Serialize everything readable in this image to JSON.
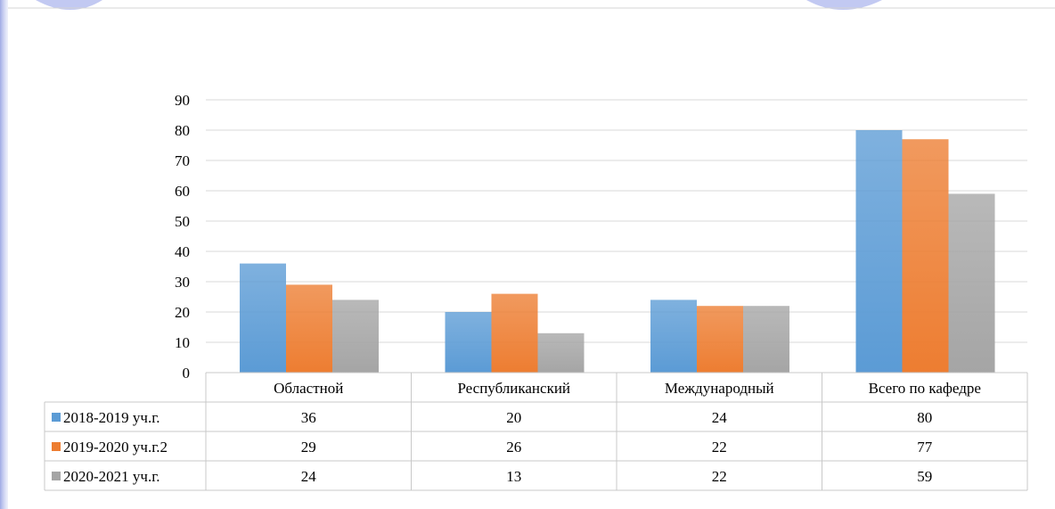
{
  "chart_data": {
    "type": "bar",
    "title": "",
    "xlabel": "",
    "ylabel": "",
    "ylim": [
      0,
      90
    ],
    "yticks": [
      0,
      10,
      20,
      30,
      40,
      50,
      60,
      70,
      80,
      90
    ],
    "grid": true,
    "legend": "data-table",
    "categories": [
      "Областной",
      "Республиканский",
      "Международный",
      "Всего по кафедре"
    ],
    "series": [
      {
        "name": "2018-2019 уч.г.",
        "color": "#5b9bd5",
        "values": [
          36,
          20,
          24,
          80
        ]
      },
      {
        "name": "2019-2020 уч.г.2",
        "color": "#ed7d31",
        "values": [
          29,
          26,
          22,
          77
        ]
      },
      {
        "name": "2020-2021 уч.г.",
        "color": "#a5a5a5",
        "values": [
          24,
          13,
          22,
          59
        ]
      }
    ]
  }
}
